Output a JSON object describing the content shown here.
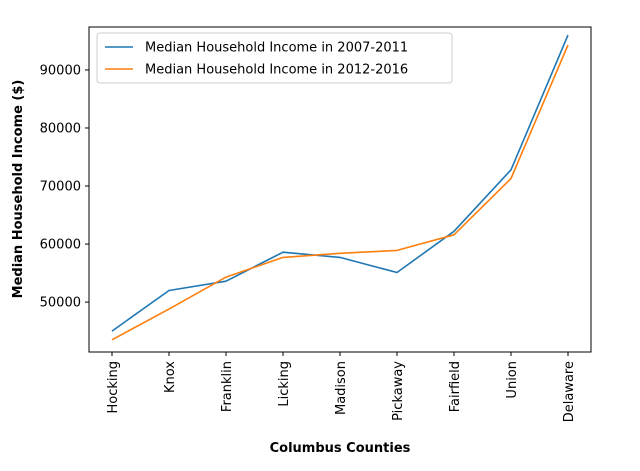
{
  "chart_data": {
    "type": "line",
    "title": "",
    "xlabel": "Columbus Counties",
    "ylabel": "Median Household Income ($)",
    "categories": [
      "Hocking",
      "Knox",
      "Franklin",
      "Licking",
      "Madison",
      "Pickaway",
      "Fairfield",
      "Union",
      "Delaware"
    ],
    "yticks": [
      50000,
      60000,
      70000,
      80000,
      90000
    ],
    "ylim": [
      41400,
      97400
    ],
    "grid": false,
    "legend_position": "upper-left",
    "series": [
      {
        "name": "Median Household Income in 2007-2011",
        "color": "#1f77b4",
        "values": [
          45000,
          52000,
          53600,
          58600,
          57700,
          55100,
          62200,
          72800,
          96000
        ]
      },
      {
        "name": "Median Household Income in 2012-2016",
        "color": "#ff7f0e",
        "values": [
          43500,
          48800,
          54300,
          57700,
          58400,
          58900,
          61600,
          71300,
          94300
        ]
      }
    ]
  }
}
